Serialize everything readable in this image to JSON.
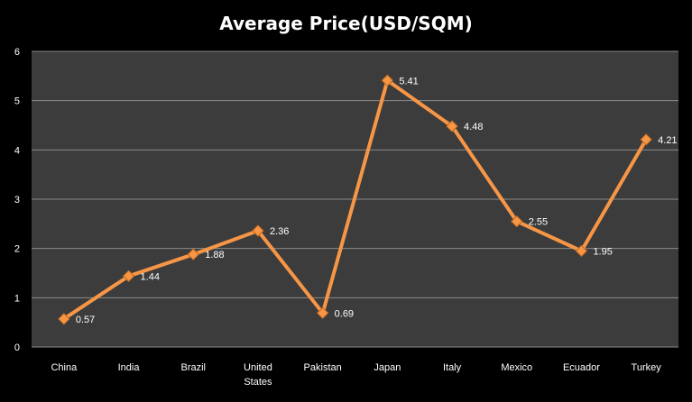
{
  "chart_data": {
    "type": "line",
    "title": "Average Price(USD/SQM)",
    "categories": [
      [
        "China"
      ],
      [
        "India"
      ],
      [
        "Brazil"
      ],
      [
        "United",
        "States"
      ],
      [
        "Pakistan"
      ],
      [
        "Japan"
      ],
      [
        "Italy"
      ],
      [
        "Mexico"
      ],
      [
        "Ecuador"
      ],
      [
        "Turkey"
      ]
    ],
    "series": [
      {
        "values": [
          0.57,
          1.44,
          1.88,
          2.36,
          0.69,
          5.41,
          4.48,
          2.55,
          1.95,
          4.21
        ]
      }
    ],
    "data_labels": [
      "0.57",
      "1.44",
      "1.88",
      "2.36",
      "0.69",
      "5.41",
      "4.48",
      "2.55",
      "1.95",
      "4.21"
    ],
    "yticks": [
      0,
      1,
      2,
      3,
      4,
      5,
      6
    ],
    "ylim": [
      0,
      6
    ],
    "grid": true,
    "legend": "none",
    "colors": {
      "background": "#000000",
      "plot_area": "#3c3c3c",
      "gridline": "#8a8a8a",
      "line": "#f79646",
      "marker": "#f79646"
    }
  }
}
